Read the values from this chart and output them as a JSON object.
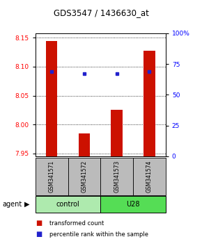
{
  "title": "GDS3547 / 1436630_at",
  "samples": [
    "GSM341571",
    "GSM341572",
    "GSM341573",
    "GSM341574"
  ],
  "bar_values": [
    8.145,
    7.984,
    8.025,
    8.128
  ],
  "bar_bottom": 7.945,
  "percentile_values": [
    8.091,
    8.088,
    8.088,
    8.091
  ],
  "ylim": [
    7.945,
    8.158
  ],
  "yticks_left": [
    7.95,
    8.0,
    8.05,
    8.1,
    8.15
  ],
  "yticks_right_pct": [
    0,
    25,
    50,
    75,
    100
  ],
  "yticks_right_labels": [
    "0",
    "25",
    "50",
    "75",
    "100%"
  ],
  "groups": [
    {
      "label": "control",
      "indices": [
        0,
        1
      ],
      "color": "#aeeaae"
    },
    {
      "label": "U28",
      "indices": [
        2,
        3
      ],
      "color": "#55dd55"
    }
  ],
  "bar_color": "#cc1100",
  "percentile_color": "#2222cc",
  "bar_width": 0.35,
  "sample_label_color": "#bbbbbb",
  "legend_red_label": "transformed count",
  "legend_blue_label": "percentile rank within the sample",
  "agent_label": "agent"
}
